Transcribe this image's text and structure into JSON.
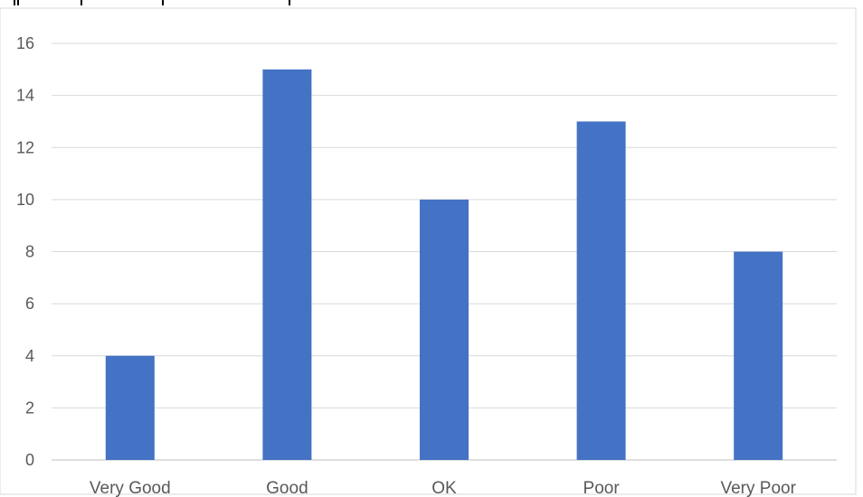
{
  "chart_data": {
    "type": "bar",
    "title": "",
    "xlabel": "",
    "ylabel": "",
    "categories": [
      "Very Good",
      "Good",
      "OK",
      "Poor",
      "Very Poor"
    ],
    "series": [
      {
        "values": [
          4,
          15,
          10,
          13,
          8
        ],
        "color": "#4472C4"
      }
    ],
    "ylim": [
      0,
      16
    ],
    "yticks": [
      0,
      2,
      4,
      6,
      8,
      10,
      12,
      14,
      16
    ],
    "grid": true,
    "legend": "none",
    "colors": {
      "bar": "#4472C4",
      "grid": "#D9D9D9",
      "axis": "#BFBFBF",
      "text": "#595959"
    }
  }
}
